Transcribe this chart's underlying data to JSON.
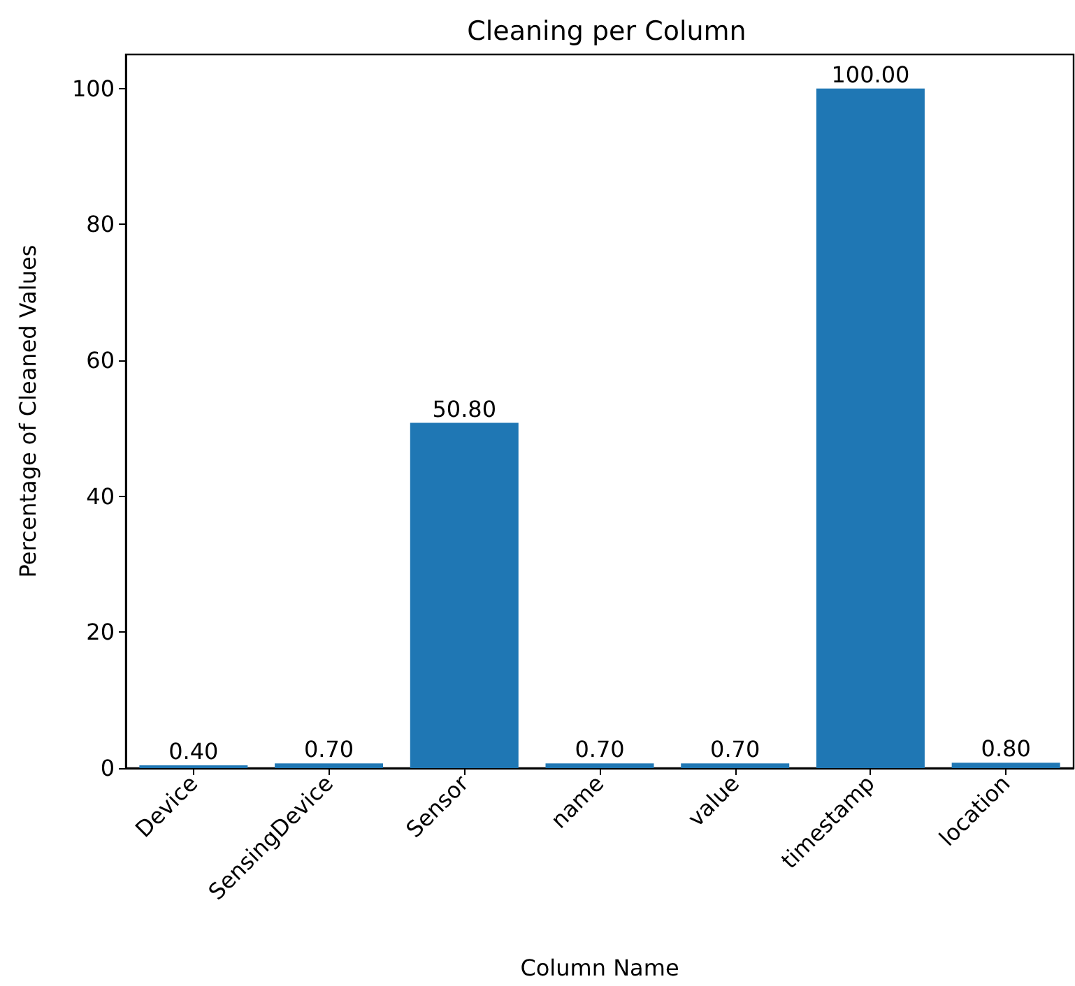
{
  "chart_data": {
    "type": "bar",
    "title": "Cleaning per Column",
    "xlabel": "Column Name",
    "ylabel": "Percentage of Cleaned Values",
    "categories": [
      "Device",
      "SensingDevice",
      "Sensor",
      "name",
      "value",
      "timestamp",
      "location"
    ],
    "values": [
      0.4,
      0.7,
      50.8,
      0.7,
      0.7,
      100,
      0.8
    ],
    "value_labels": [
      "0.40",
      "0.70",
      "50.80",
      "0.70",
      "0.70",
      "100.00",
      "0.80"
    ],
    "color": "#1f77b4",
    "ylim": [
      0,
      105
    ],
    "yticks": [
      0,
      20,
      40,
      60,
      80,
      100
    ]
  }
}
